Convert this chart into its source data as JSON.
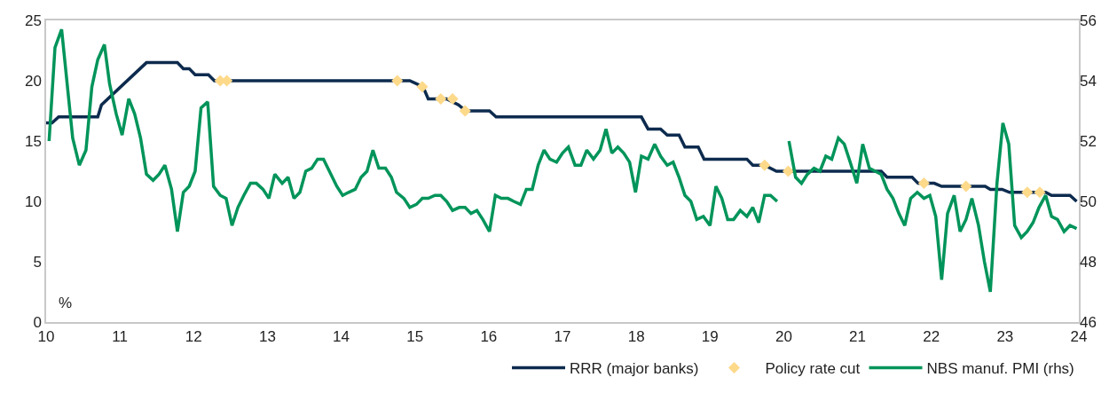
{
  "chart_data": {
    "type": "line",
    "xlim": [
      2010,
      2024
    ],
    "xticks": [
      {
        "value": 2010,
        "label": "10"
      },
      {
        "value": 2011,
        "label": "11"
      },
      {
        "value": 2012,
        "label": "12"
      },
      {
        "value": 2013,
        "label": "13"
      },
      {
        "value": 2014,
        "label": "14"
      },
      {
        "value": 2015,
        "label": "15"
      },
      {
        "value": 2016,
        "label": "16"
      },
      {
        "value": 2017,
        "label": "17"
      },
      {
        "value": 2018,
        "label": "18"
      },
      {
        "value": 2019,
        "label": "19"
      },
      {
        "value": 2020,
        "label": "20"
      },
      {
        "value": 2021,
        "label": "21"
      },
      {
        "value": 2022,
        "label": "22"
      },
      {
        "value": 2023,
        "label": "23"
      },
      {
        "value": 2024,
        "label": "24"
      }
    ],
    "ylim": [
      0,
      25
    ],
    "yticks": [
      0,
      5,
      10,
      15,
      20,
      25
    ],
    "y2lim": [
      46,
      56
    ],
    "y2ticks": [
      46,
      48,
      50,
      52,
      54,
      56
    ],
    "annotations": [
      "%"
    ],
    "legend": "bottom",
    "grid": false,
    "series": [
      {
        "name": "RRR (major banks)",
        "color": "#0d2b4e",
        "x": [
          2010.0,
          2010.08,
          2010.17,
          2010.7,
          2010.75,
          2011.36,
          2011.78,
          2011.86,
          2011.94,
          2012.02,
          2012.2,
          2012.28,
          2014.93,
          2015.11,
          2015.18,
          2015.43,
          2015.59,
          2015.69,
          2016.01,
          2016.1,
          2018.07,
          2018.16,
          2018.33,
          2018.42,
          2018.58,
          2018.66,
          2018.84,
          2018.92,
          2019.5,
          2019.58,
          2019.74,
          2019.9,
          2021.32,
          2021.4,
          2021.74,
          2021.82,
          2022.04,
          2022.14,
          2022.73,
          2022.8,
          2022.96,
          2023.06,
          2023.55,
          2023.63,
          2023.88,
          2023.97
        ],
        "values": [
          16.5,
          16.5,
          17,
          17,
          18,
          21.5,
          21.5,
          21,
          21,
          20.5,
          20.5,
          20,
          20,
          19.5,
          18.5,
          18.5,
          18,
          17.5,
          17.5,
          17,
          17,
          16,
          16,
          15.5,
          15.5,
          14.5,
          14.5,
          13.5,
          13.5,
          13,
          13,
          12.5,
          12.5,
          12,
          12,
          11.5,
          11.5,
          11.25,
          11.25,
          11,
          11,
          10.75,
          10.75,
          10.5,
          10.5,
          10
        ]
      },
      {
        "name": "Policy rate cut",
        "color": "#fdd98a",
        "type": "scatter",
        "marker": "diamond",
        "x": [
          2012.36,
          2012.45,
          2014.76,
          2015.1,
          2015.35,
          2015.51,
          2015.68,
          2019.74,
          2020.06,
          2021.9,
          2022.47,
          2023.3,
          2023.47
        ],
        "values": [
          20,
          20,
          20,
          19.5,
          18.5,
          18.5,
          17.5,
          13,
          12.5,
          11.5,
          11.25,
          10.75,
          10.75
        ]
      },
      {
        "name": "NBS manuf. PMI (rhs)",
        "color": "#00945a",
        "axis": "y2",
        "x": [
          2010.04,
          2010.12,
          2010.21,
          2010.36,
          2010.45,
          2010.54,
          2010.62,
          2010.7,
          2010.79,
          2010.86,
          2010.95,
          2011.03,
          2011.12,
          2011.2,
          2011.28,
          2011.36,
          2011.45,
          2011.53,
          2011.61,
          2011.7,
          2011.78,
          2011.86,
          2011.94,
          2012.02,
          2012.1,
          2012.19,
          2012.27,
          2012.36,
          2012.44,
          2012.52,
          2012.6,
          2012.68,
          2012.77,
          2012.85,
          2012.94,
          2013.02,
          2013.1,
          2013.2,
          2013.28,
          2013.36,
          2013.44,
          2013.52,
          2013.6,
          2013.68,
          2013.76,
          2013.84,
          2013.94,
          2014.02,
          2014.1,
          2014.19,
          2014.27,
          2014.35,
          2014.43,
          2014.51,
          2014.6,
          2014.68,
          2014.75,
          2014.85,
          2014.93,
          2015.02,
          2015.1,
          2015.18,
          2015.27,
          2015.35,
          2015.43,
          2015.51,
          2015.6,
          2015.68,
          2015.76,
          2015.84,
          2015.92,
          2016.01,
          2016.09,
          2016.17,
          2016.26,
          2016.34,
          2016.43,
          2016.51,
          2016.59,
          2016.67,
          2016.75,
          2016.83,
          2016.92,
          2017.0,
          2017.08,
          2017.17,
          2017.25,
          2017.33,
          2017.42,
          2017.51,
          2017.59,
          2017.67,
          2017.75,
          2017.83,
          2017.91,
          2017.99,
          2018.07,
          2018.16,
          2018.25,
          2018.33,
          2018.42,
          2018.5,
          2018.58,
          2018.66,
          2018.74,
          2018.82,
          2018.91,
          2019.0,
          2019.08,
          2019.16,
          2019.24,
          2019.32,
          2019.41,
          2019.5,
          2019.58,
          2019.66,
          2019.74,
          2019.82,
          2019.91,
          2019.99,
          2020.07,
          2020.16,
          2020.24,
          2020.32,
          2020.41,
          2020.49,
          2020.57,
          2020.65,
          2020.74,
          2020.82,
          2020.9,
          2020.99,
          2021.07,
          2021.16,
          2021.24,
          2021.32,
          2021.4,
          2021.48,
          2021.56,
          2021.64,
          2021.72,
          2021.81,
          2021.9,
          2021.98,
          2022.06,
          2022.14,
          2022.22,
          2022.31,
          2022.39,
          2022.47,
          2022.55,
          2022.64,
          2022.72,
          2022.8,
          2022.89,
          2022.97,
          2023.05,
          2023.13,
          2023.22,
          2023.3,
          2023.38,
          2023.46,
          2023.55,
          2023.63,
          2023.71,
          2023.8,
          2023.88,
          2023.97
        ],
        "values": [
          52.0,
          55.1,
          55.7,
          52.1,
          51.2,
          51.7,
          53.8,
          54.7,
          55.2,
          53.9,
          52.9,
          52.2,
          53.4,
          52.9,
          52.1,
          50.9,
          50.7,
          50.9,
          51.2,
          50.4,
          49.0,
          50.3,
          50.5,
          51.0,
          53.1,
          53.3,
          50.5,
          50.2,
          50.1,
          49.2,
          49.8,
          50.2,
          50.6,
          50.6,
          50.4,
          50.1,
          50.9,
          50.6,
          50.8,
          50.1,
          50.3,
          51.0,
          51.1,
          51.4,
          51.4,
          51.0,
          50.5,
          50.2,
          50.3,
          50.4,
          50.8,
          51.0,
          51.7,
          51.1,
          51.1,
          50.8,
          50.3,
          50.1,
          49.8,
          49.9,
          50.1,
          50.1,
          50.2,
          50.2,
          50.0,
          49.7,
          49.8,
          49.8,
          49.6,
          49.7,
          49.4,
          49.0,
          50.2,
          50.1,
          50.1,
          50.0,
          49.9,
          50.4,
          50.4,
          51.2,
          51.7,
          51.4,
          51.3,
          51.6,
          51.8,
          51.2,
          51.2,
          51.7,
          51.4,
          51.7,
          52.4,
          51.6,
          51.8,
          51.6,
          51.3,
          50.3,
          51.5,
          51.4,
          51.9,
          51.5,
          51.2,
          51.3,
          50.8,
          50.2,
          50.0,
          49.4,
          49.5,
          49.2,
          50.5,
          50.1,
          49.4,
          49.4,
          49.7,
          49.5,
          49.8,
          49.3,
          50.2,
          50.2,
          50.0,
          null,
          52.0,
          50.8,
          50.6,
          50.9,
          51.1,
          51.0,
          51.5,
          51.4,
          52.1,
          51.9,
          51.3,
          50.6,
          51.9,
          51.1,
          51.0,
          50.9,
          50.4,
          50.1,
          49.6,
          49.2,
          50.1,
          50.3,
          50.1,
          50.2,
          49.5,
          47.4,
          49.6,
          50.2,
          49.0,
          49.4,
          50.1,
          49.2,
          48.0,
          47.0,
          50.6,
          52.6,
          51.9,
          49.2,
          48.8,
          49.0,
          49.3,
          49.8,
          50.2,
          49.5,
          49.4,
          49.0,
          49.2,
          49.1
        ]
      }
    ]
  }
}
